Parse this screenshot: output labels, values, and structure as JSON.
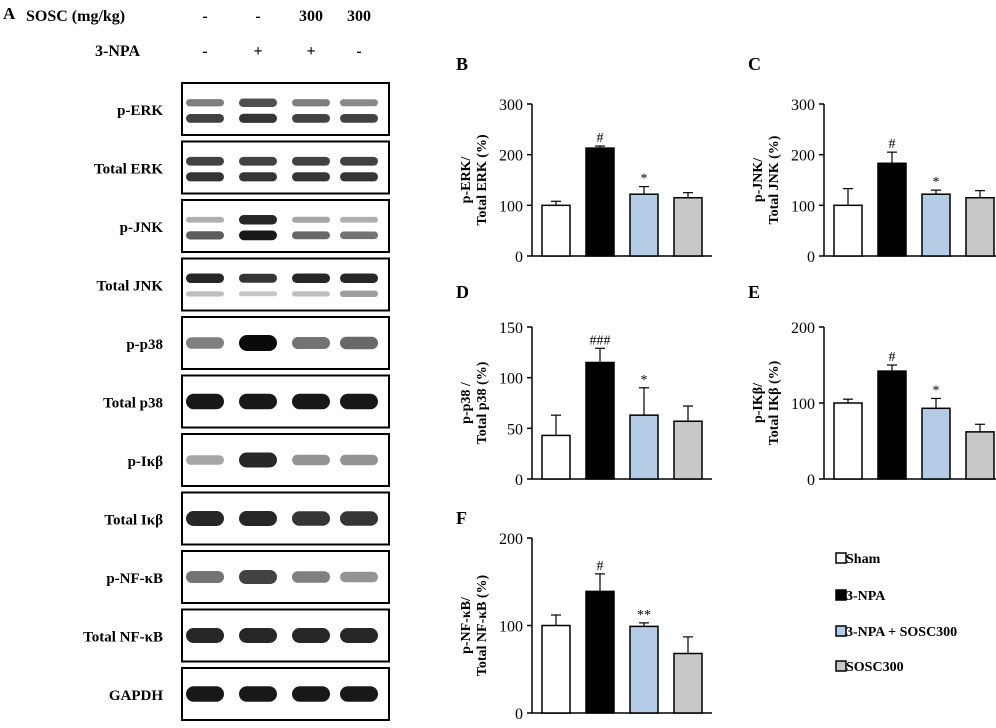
{
  "panel_a": {
    "letter": "A",
    "treatments": [
      {
        "label": "SOSC (mg/kg)",
        "values": [
          "-",
          "-",
          "300",
          "300"
        ]
      },
      {
        "label": "3-NPA",
        "values": [
          "-",
          "+",
          "+",
          "-"
        ]
      }
    ],
    "blots": [
      {
        "label": "p-ERK",
        "bands": [
          [
            0.55,
            0.75,
            0.55,
            0.5
          ],
          [
            0.8,
            0.85,
            0.8,
            0.8
          ]
        ]
      },
      {
        "label": "Total ERK",
        "bands": [
          [
            0.8,
            0.8,
            0.8,
            0.8
          ],
          [
            0.85,
            0.85,
            0.85,
            0.85
          ]
        ]
      },
      {
        "label": "p-JNK",
        "bands": [
          [
            0.3,
            0.9,
            0.35,
            0.3
          ],
          [
            0.7,
            0.95,
            0.65,
            0.6
          ]
        ]
      },
      {
        "label": "Total JNK",
        "bands": [
          [
            0.9,
            0.85,
            0.9,
            0.9
          ],
          [
            0.2,
            0.15,
            0.2,
            0.4
          ]
        ]
      },
      {
        "label": "p-p38",
        "bands": [
          [
            0.55,
            1.0,
            0.6,
            0.65
          ]
        ]
      },
      {
        "label": "Total p38",
        "bands": [
          [
            0.95,
            0.95,
            0.95,
            0.95
          ]
        ]
      },
      {
        "label": "p-Iκβ",
        "bands": [
          [
            0.35,
            0.9,
            0.45,
            0.45
          ]
        ]
      },
      {
        "label": "Total Iκβ",
        "bands": [
          [
            0.9,
            0.9,
            0.85,
            0.85
          ]
        ]
      },
      {
        "label": "p-NF-κB",
        "bands": [
          [
            0.6,
            0.8,
            0.55,
            0.45
          ]
        ]
      },
      {
        "label": "Total NF-κB",
        "bands": [
          [
            0.9,
            0.9,
            0.9,
            0.9
          ]
        ]
      },
      {
        "label": "GAPDH",
        "bands": [
          [
            0.95,
            0.95,
            0.95,
            0.95
          ]
        ]
      }
    ]
  },
  "legend": {
    "items": [
      {
        "label": "Sham",
        "color": "#ffffff"
      },
      {
        "label": "3-NPA",
        "color": "#000000"
      },
      {
        "label": "3-NPA + SOSC300",
        "color": "#b4cce6"
      },
      {
        "label": "SOSC300",
        "color": "#c8c8c8"
      }
    ]
  },
  "chart_data": [
    {
      "panel": "B",
      "type": "bar",
      "ylabel_line1": "p-ERK/",
      "ylabel_line2": "Total ERK (%)",
      "categories": [
        "Sham",
        "3-NPA",
        "3-NPA + SOSC300",
        "SOSC300"
      ],
      "values": [
        100,
        213,
        122,
        115
      ],
      "errors": [
        8,
        4,
        15,
        10
      ],
      "annotations": [
        "",
        "#",
        "*",
        ""
      ],
      "ylim": [
        0,
        300
      ],
      "yticks": [
        0,
        100,
        200,
        300
      ]
    },
    {
      "panel": "C",
      "type": "bar",
      "ylabel_line1": "p-JNK/",
      "ylabel_line2": "Total JNK (%)",
      "categories": [
        "Sham",
        "3-NPA",
        "3-NPA + SOSC300",
        "SOSC300"
      ],
      "values": [
        100,
        183,
        122,
        115
      ],
      "errors": [
        33,
        22,
        8,
        14
      ],
      "annotations": [
        "",
        "#",
        "*",
        ""
      ],
      "ylim": [
        0,
        300
      ],
      "yticks": [
        0,
        100,
        200,
        300
      ]
    },
    {
      "panel": "D",
      "type": "bar",
      "ylabel_line1": "p-p38 /",
      "ylabel_line2": "Total p38 (%)",
      "categories": [
        "Sham",
        "3-NPA",
        "3-NPA + SOSC300",
        "SOSC300"
      ],
      "values": [
        43,
        115,
        63,
        57
      ],
      "errors": [
        20,
        14,
        27,
        15
      ],
      "annotations": [
        "",
        "###",
        "*",
        ""
      ],
      "ylim": [
        0,
        150
      ],
      "yticks": [
        0,
        50,
        100,
        150
      ]
    },
    {
      "panel": "E",
      "type": "bar",
      "ylabel_line1": "p-IKβ/",
      "ylabel_line2": "Total IKβ (%)",
      "categories": [
        "Sham",
        "3-NPA",
        "3-NPA + SOSC300",
        "SOSC300"
      ],
      "values": [
        100,
        142,
        93,
        62
      ],
      "errors": [
        5,
        8,
        13,
        10
      ],
      "annotations": [
        "",
        "#",
        "*",
        ""
      ],
      "ylim": [
        0,
        200
      ],
      "yticks": [
        0,
        100,
        200
      ]
    },
    {
      "panel": "F",
      "type": "bar",
      "ylabel_line1": "p-NF-κB/",
      "ylabel_line2": "Total NF-κB (%)",
      "categories": [
        "Sham",
        "3-NPA",
        "3-NPA + SOSC300",
        "SOSC300"
      ],
      "values": [
        100,
        139,
        99,
        68
      ],
      "errors": [
        12,
        20,
        4,
        19
      ],
      "annotations": [
        "",
        "#",
        "**",
        ""
      ],
      "ylim": [
        0,
        200
      ],
      "yticks": [
        0,
        100,
        200
      ]
    }
  ]
}
